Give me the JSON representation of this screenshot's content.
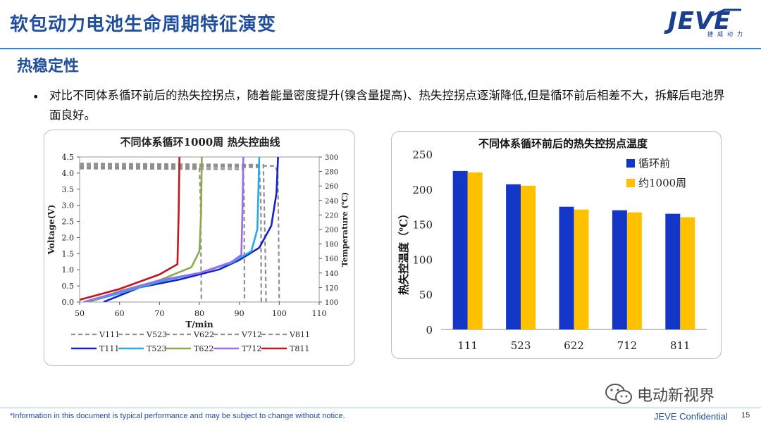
{
  "header": {
    "title": "软包动力电池生命周期特征演变"
  },
  "logo": {
    "main": "JEVE",
    "sub": "捷威动力"
  },
  "section": {
    "title": "热稳定性"
  },
  "bullet": {
    "text": "对比不同体系循环前后的热失控拐点，随着能量密度提升(镍含量提高)、热失控拐点逐渐降低,但是循环前后相差不大，拆解后电池界面良好。"
  },
  "colors": {
    "V": "#8f8f8f",
    "T111": "#1521c8",
    "T523": "#29a9e3",
    "T622": "#8aaa50",
    "T712": "#9b6cf0",
    "T811": "#c0171c",
    "before": "#1336c7",
    "after": "#ffc000",
    "title_blue": "#1f4e9c"
  },
  "chart_data": [
    {
      "type": "line",
      "title": "不同体系循环1000周  热失控曲线",
      "xlabel": "T/min",
      "ylabel": "Voltage(V)",
      "y2label": "Temperature (℃)",
      "xlim": [
        50,
        110
      ],
      "ylim": [
        0,
        4.5
      ],
      "y2lim": [
        100,
        300
      ],
      "xticks": [
        50,
        60,
        70,
        80,
        90,
        100,
        110
      ],
      "yticks": [
        "0.0",
        "0.5",
        "1.0",
        "1.5",
        "2.0",
        "2.5",
        "3.0",
        "3.5",
        "4.0",
        "4.5"
      ],
      "y2ticks": [
        100,
        120,
        140,
        160,
        180,
        200,
        220,
        240,
        260,
        280,
        300
      ],
      "legend_position": "bottom",
      "voltage_series": [
        {
          "name": "V111",
          "points": [
            [
              50,
              4.25
            ],
            [
              99,
              4.22
            ],
            [
              99.6,
              4.0
            ],
            [
              99.8,
              2.5
            ],
            [
              100,
              0
            ]
          ]
        },
        {
          "name": "V523",
          "points": [
            [
              50,
              4.2
            ],
            [
              95,
              4.18
            ],
            [
              95.4,
              3.0
            ],
            [
              95.5,
              0
            ]
          ]
        },
        {
          "name": "V622",
          "points": [
            [
              50,
              4.18
            ],
            [
              80,
              4.16
            ],
            [
              80.3,
              3.0
            ],
            [
              80.5,
              0
            ]
          ]
        },
        {
          "name": "V712",
          "points": [
            [
              50,
              4.14
            ],
            [
              91,
              4.12
            ],
            [
              91.2,
              3.0
            ],
            [
              91.3,
              0
            ]
          ]
        },
        {
          "name": "V811",
          "points": [
            [
              50,
              4.3
            ],
            [
              96,
              4.26
            ],
            [
              96.5,
              1.5
            ],
            [
              96.7,
              0
            ]
          ]
        }
      ],
      "temperature_series": [
        {
          "name": "T111",
          "points": [
            [
              56,
              100
            ],
            [
              65,
              120
            ],
            [
              75,
              131
            ],
            [
              85,
              145
            ],
            [
              90,
              158
            ],
            [
              95,
              175
            ],
            [
              98,
              205
            ],
            [
              99.3,
              250
            ],
            [
              99.7,
              300
            ]
          ]
        },
        {
          "name": "T523",
          "points": [
            [
              52,
              100
            ],
            [
              60,
              112
            ],
            [
              70,
              128
            ],
            [
              80,
              140
            ],
            [
              88,
              154
            ],
            [
              93,
              170
            ],
            [
              94.5,
              200
            ],
            [
              94.8,
              260
            ],
            [
              95,
              300
            ]
          ]
        },
        {
          "name": "T622",
          "points": [
            [
              52,
              100
            ],
            [
              60,
              115
            ],
            [
              70,
              130
            ],
            [
              78,
              148
            ],
            [
              80,
              170
            ],
            [
              80.4,
              220
            ],
            [
              80.6,
              300
            ]
          ]
        },
        {
          "name": "T712",
          "points": [
            [
              51,
              100
            ],
            [
              60,
              114
            ],
            [
              70,
              130
            ],
            [
              80,
              140
            ],
            [
              88,
              155
            ],
            [
              90.5,
              165
            ],
            [
              90.8,
              230
            ],
            [
              91,
              300
            ]
          ]
        },
        {
          "name": "T811",
          "points": [
            [
              50,
              103
            ],
            [
              60,
              118
            ],
            [
              70,
              138
            ],
            [
              74.5,
              152
            ],
            [
              74.8,
              220
            ],
            [
              75,
              300
            ]
          ]
        }
      ]
    },
    {
      "type": "bar",
      "title": "不同体系循环前后的热失控拐点温度",
      "ylabel": "热失控温度（℃）",
      "categories": [
        "111",
        "523",
        "622",
        "712",
        "811"
      ],
      "series": [
        {
          "name": "循环前",
          "values": [
            226,
            207,
            175,
            170,
            165
          ]
        },
        {
          "name": "约1000周",
          "values": [
            224,
            205,
            171,
            167,
            160
          ]
        }
      ],
      "ylim": [
        0,
        250
      ],
      "yticks": [
        0,
        50,
        100,
        150,
        200,
        250
      ],
      "grid": false,
      "legend_position": "top-right"
    }
  ],
  "watermark": {
    "text": "电动新视界"
  },
  "footer": {
    "note": "*Information in this document is typical performance and may be subject to change without notice.",
    "confidential": "JEVE Confidential",
    "page": "15"
  }
}
